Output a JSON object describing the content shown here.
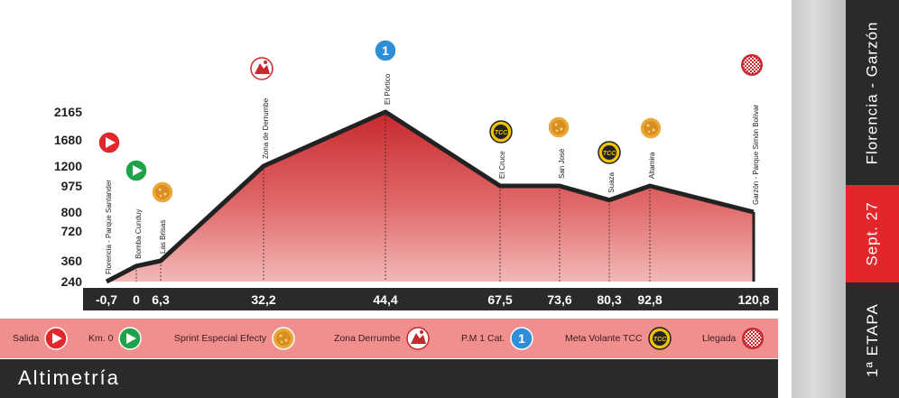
{
  "chart_data": {
    "type": "area",
    "title": "Altimetría",
    "y_ticks": [
      240,
      360,
      720,
      800,
      975,
      1200,
      1680,
      2165
    ],
    "x_ticks": [
      "-0,7",
      "0",
      "6,3",
      "32,2",
      "44,4",
      "67,5",
      "73,6",
      "80,3",
      "92,8",
      "120,8"
    ],
    "points": [
      {
        "km": -0.7,
        "alt": 240,
        "label": "Florencia - Parque Santander",
        "icon": "salida"
      },
      {
        "km": 0,
        "alt": 330,
        "label": "Bomba Cunduy",
        "icon": "km0"
      },
      {
        "km": 6.3,
        "alt": 360,
        "label": "Las Brisas",
        "icon": "sprint"
      },
      {
        "km": 32.2,
        "alt": 1200,
        "label": "Zona de Derrumbe",
        "icon": "derrumbe"
      },
      {
        "km": 44.4,
        "alt": 2165,
        "label": "El Pórtico",
        "icon": "pm1"
      },
      {
        "km": 67.5,
        "alt": 975,
        "label": "El Cruce",
        "icon": "tcc"
      },
      {
        "km": 73.6,
        "alt": 975,
        "label": "San José",
        "icon": "sprint"
      },
      {
        "km": 80.3,
        "alt": 880,
        "label": "Suaza",
        "icon": "tcc"
      },
      {
        "km": 92.8,
        "alt": 975,
        "label": "Altamira",
        "icon": "sprint"
      },
      {
        "km": 120.8,
        "alt": 800,
        "label": "Garzón - Parque Simón Bolívar",
        "icon": "llegada"
      }
    ],
    "colors": {
      "fill": "#c8282e",
      "fill_light": "#f2b8b8",
      "line": "#222222",
      "axis_band": "#2a2a2a"
    }
  },
  "legend": [
    {
      "label": "Salida",
      "icon": "salida"
    },
    {
      "label": "Km. 0",
      "icon": "km0"
    },
    {
      "label": "Sprint Especial Efecty",
      "icon": "sprint"
    },
    {
      "label": "Zona Derrumbe",
      "icon": "derrumbe"
    },
    {
      "label": "P.M 1 Cat.",
      "icon": "pm1"
    },
    {
      "label": "Meta Volante TCC",
      "icon": "tcc"
    },
    {
      "label": "Llegada",
      "icon": "llegada"
    }
  ],
  "title": "Altimetría",
  "side": {
    "route": "Florencia - Garzón",
    "date": "Sept. 27",
    "stage": "1ª ETAPA"
  },
  "icon_text": {
    "tcc": "TCC",
    "pm1": "1"
  }
}
